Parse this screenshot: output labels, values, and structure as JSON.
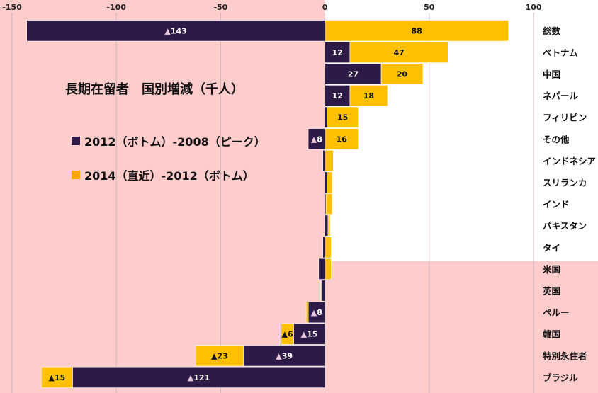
{
  "chart_data": {
    "type": "bar",
    "orientation": "horizontal",
    "stacked": "diverging",
    "title": "長期在留者　国別増減（千人）",
    "xlim": [
      -150,
      100
    ],
    "xticks": [
      "-150",
      "-100",
      "-50",
      "0",
      "50",
      "100"
    ],
    "tick_values": [
      -150,
      -100,
      -50,
      0,
      50,
      100
    ],
    "categories": [
      "総数",
      "ベトナム",
      "中国",
      "ネパール",
      "フィリピン",
      "その他",
      "インドネシア",
      "スリランカ",
      "インド",
      "パキスタン",
      "タイ",
      "米国",
      "英国",
      "ペルー",
      "韓国",
      "特別永住者",
      "ブラジル"
    ],
    "series": [
      {
        "name": "2012（ボトム）-2008（ピーク）",
        "color": "#2e1a47",
        "values": [
          -143,
          12,
          27,
          12,
          1,
          -8,
          -1,
          1,
          0.5,
          1.5,
          -1,
          -3,
          -1.5,
          -8,
          -15,
          -39,
          -121
        ],
        "labels": [
          "▲143",
          "12",
          "27",
          "12",
          "",
          "▲8",
          "",
          "",
          "",
          "",
          "",
          "",
          "",
          "▲8",
          "▲15",
          "▲39",
          "▲121"
        ]
      },
      {
        "name": "2014（直近）-2012（ボトム）",
        "color": "#ffc000",
        "values": [
          88,
          47,
          20,
          18,
          15,
          16,
          4,
          2.5,
          3,
          1,
          3,
          3,
          -0.5,
          -1,
          -6,
          -23,
          -15
        ],
        "labels": [
          "88",
          "47",
          "20",
          "18",
          "15",
          "16",
          "",
          "",
          "",
          "",
          "",
          "",
          "",
          "",
          "▲6",
          "▲23",
          "▲15"
        ]
      }
    ],
    "legend_colors": [
      "#2e1a47",
      "#ffa500"
    ],
    "background_color": "#ffcccc",
    "text_color_dark": "#111111",
    "text_color_light": "#ffffff",
    "triangle_light": "#e8c8dc"
  }
}
